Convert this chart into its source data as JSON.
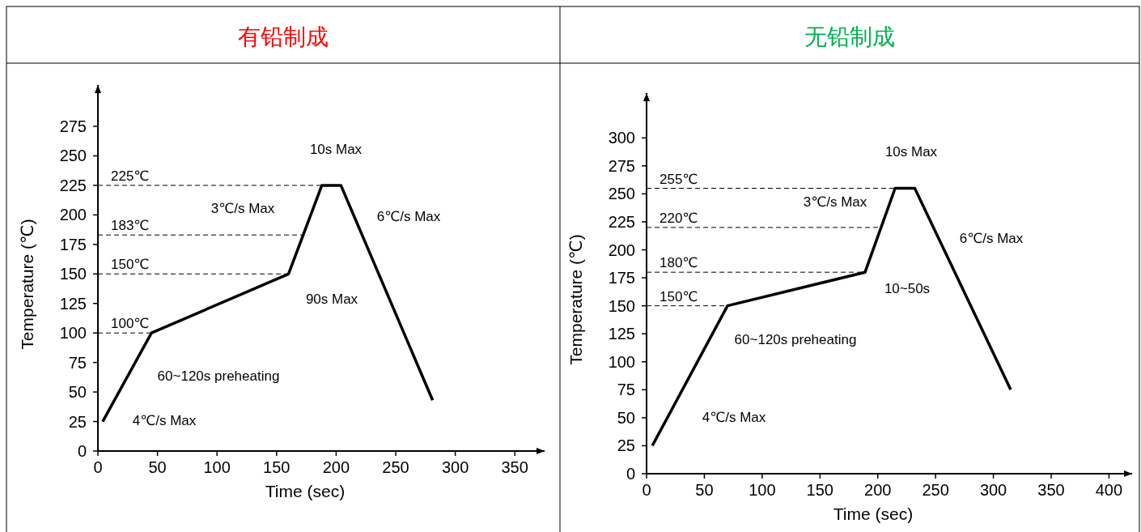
{
  "chart_data": [
    {
      "type": "line",
      "title": "有铅制成",
      "xlabel": "Time (sec)",
      "ylabel": "Temperature (℃)",
      "xlim": [
        0,
        375
      ],
      "ylim": [
        0,
        310
      ],
      "xticks": [
        0,
        50,
        100,
        150,
        200,
        250,
        300,
        350
      ],
      "yticks": [
        0,
        25,
        50,
        75,
        100,
        125,
        150,
        175,
        200,
        225,
        250,
        275
      ],
      "series": [
        {
          "color": "#000000",
          "x": [
            4,
            45,
            160,
            188,
            204,
            281
          ],
          "values": [
            25,
            100,
            150,
            225,
            225,
            43
          ]
        }
      ],
      "ref_lines": [
        {
          "axis": "y",
          "value": 225,
          "label": "225℃",
          "line_style": "dashed"
        },
        {
          "axis": "y",
          "value": 183,
          "label": "183℃",
          "line_style": "dashed"
        },
        {
          "axis": "y",
          "value": 150,
          "label": "150℃",
          "line_style": "dashed"
        },
        {
          "axis": "y",
          "value": 100,
          "label": "100℃",
          "line_style": "dashed"
        }
      ],
      "annotations": [
        "10s Max",
        "3℃/s Max",
        "6℃/s Max",
        "90s Max",
        "60~120s preheating",
        "4℃/s Max"
      ]
    },
    {
      "type": "line",
      "title": "无铅制成",
      "xlabel": "Time (sec)",
      "ylabel": "Temperature (℃)",
      "xlim": [
        0,
        420
      ],
      "ylim": [
        0,
        340
      ],
      "xticks": [
        0,
        50,
        100,
        150,
        200,
        250,
        300,
        350,
        400
      ],
      "yticks": [
        0,
        25,
        50,
        75,
        100,
        125,
        150,
        175,
        200,
        225,
        250,
        275,
        300
      ],
      "series": [
        {
          "color": "#000000",
          "x": [
            5,
            70,
            189,
            215,
            232,
            315
          ],
          "values": [
            25,
            150,
            180,
            255,
            255,
            75
          ]
        }
      ],
      "ref_lines": [
        {
          "axis": "y",
          "value": 255,
          "label": "255℃",
          "line_style": "dashed"
        },
        {
          "axis": "y",
          "value": 220,
          "label": "220℃",
          "line_style": "dashed"
        },
        {
          "axis": "y",
          "value": 180,
          "label": "180℃",
          "line_style": "dashed"
        },
        {
          "axis": "y",
          "value": 150,
          "label": "150℃",
          "line_style": "dashed"
        }
      ],
      "annotations": [
        "10s Max",
        "3℃/s Max",
        "6℃/s Max",
        "10~50s",
        "60~120s preheating",
        "4℃/s Max"
      ]
    }
  ]
}
